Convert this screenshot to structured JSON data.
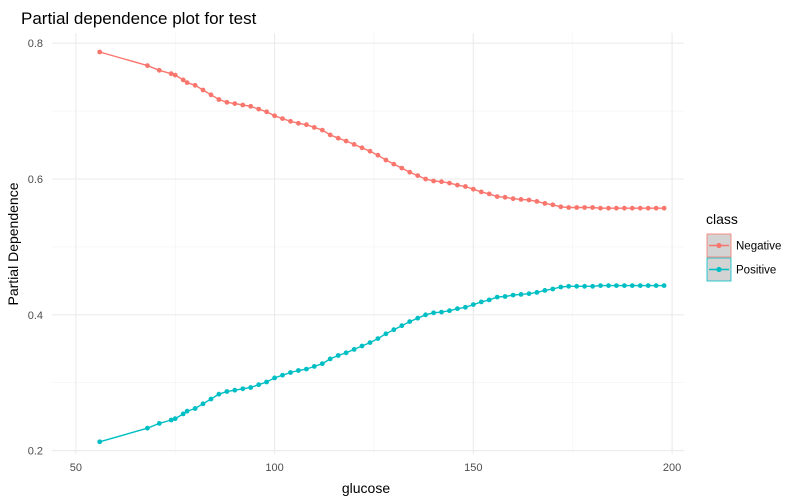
{
  "chart_data": {
    "type": "line",
    "title": "Partial dependence plot for test",
    "xlabel": "glucose",
    "ylabel": "Partial Dependence",
    "xlim": [
      44,
      203
    ],
    "ylim": [
      0.195,
      0.815
    ],
    "x_ticks": [
      50,
      100,
      150,
      200
    ],
    "y_ticks": [
      0.2,
      0.4,
      0.6,
      0.8
    ],
    "grid": true,
    "legend": {
      "title": "class",
      "position": "right"
    },
    "series": [
      {
        "name": "Negative",
        "color": "#F8766D",
        "points": [
          [
            56,
            0.787
          ],
          [
            68,
            0.767
          ],
          [
            71,
            0.76
          ],
          [
            74,
            0.755
          ],
          [
            75,
            0.753
          ],
          [
            77,
            0.746
          ],
          [
            78,
            0.742
          ],
          [
            80,
            0.738
          ],
          [
            82,
            0.731
          ],
          [
            84,
            0.724
          ],
          [
            86,
            0.717
          ],
          [
            88,
            0.713
          ],
          [
            90,
            0.711
          ],
          [
            92,
            0.709
          ],
          [
            94,
            0.707
          ],
          [
            96,
            0.703
          ],
          [
            98,
            0.699
          ],
          [
            100,
            0.693
          ],
          [
            102,
            0.689
          ],
          [
            104,
            0.685
          ],
          [
            106,
            0.682
          ],
          [
            108,
            0.68
          ],
          [
            110,
            0.676
          ],
          [
            112,
            0.672
          ],
          [
            114,
            0.665
          ],
          [
            116,
            0.66
          ],
          [
            118,
            0.656
          ],
          [
            120,
            0.651
          ],
          [
            122,
            0.646
          ],
          [
            124,
            0.641
          ],
          [
            126,
            0.635
          ],
          [
            128,
            0.628
          ],
          [
            130,
            0.622
          ],
          [
            132,
            0.616
          ],
          [
            134,
            0.61
          ],
          [
            136,
            0.605
          ],
          [
            138,
            0.6
          ],
          [
            140,
            0.597
          ],
          [
            142,
            0.596
          ],
          [
            144,
            0.594
          ],
          [
            146,
            0.591
          ],
          [
            148,
            0.589
          ],
          [
            150,
            0.585
          ],
          [
            152,
            0.581
          ],
          [
            154,
            0.578
          ],
          [
            156,
            0.574
          ],
          [
            158,
            0.573
          ],
          [
            160,
            0.571
          ],
          [
            162,
            0.57
          ],
          [
            164,
            0.569
          ],
          [
            166,
            0.567
          ],
          [
            168,
            0.564
          ],
          [
            170,
            0.562
          ],
          [
            172,
            0.559
          ],
          [
            174,
            0.558
          ],
          [
            176,
            0.558
          ],
          [
            178,
            0.558
          ],
          [
            180,
            0.558
          ],
          [
            182,
            0.557
          ],
          [
            184,
            0.557
          ],
          [
            186,
            0.557
          ],
          [
            188,
            0.557
          ],
          [
            190,
            0.557
          ],
          [
            192,
            0.557
          ],
          [
            194,
            0.557
          ],
          [
            196,
            0.557
          ],
          [
            198,
            0.557
          ]
        ]
      },
      {
        "name": "Positive",
        "color": "#00BFC4",
        "points": [
          [
            56,
            0.213
          ],
          [
            68,
            0.233
          ],
          [
            71,
            0.24
          ],
          [
            74,
            0.245
          ],
          [
            75,
            0.247
          ],
          [
            77,
            0.254
          ],
          [
            78,
            0.258
          ],
          [
            80,
            0.262
          ],
          [
            82,
            0.269
          ],
          [
            84,
            0.276
          ],
          [
            86,
            0.283
          ],
          [
            88,
            0.287
          ],
          [
            90,
            0.289
          ],
          [
            92,
            0.291
          ],
          [
            94,
            0.293
          ],
          [
            96,
            0.297
          ],
          [
            98,
            0.301
          ],
          [
            100,
            0.307
          ],
          [
            102,
            0.311
          ],
          [
            104,
            0.315
          ],
          [
            106,
            0.318
          ],
          [
            108,
            0.32
          ],
          [
            110,
            0.324
          ],
          [
            112,
            0.328
          ],
          [
            114,
            0.335
          ],
          [
            116,
            0.34
          ],
          [
            118,
            0.344
          ],
          [
            120,
            0.349
          ],
          [
            122,
            0.354
          ],
          [
            124,
            0.359
          ],
          [
            126,
            0.365
          ],
          [
            128,
            0.372
          ],
          [
            130,
            0.378
          ],
          [
            132,
            0.384
          ],
          [
            134,
            0.39
          ],
          [
            136,
            0.395
          ],
          [
            138,
            0.4
          ],
          [
            140,
            0.403
          ],
          [
            142,
            0.404
          ],
          [
            144,
            0.406
          ],
          [
            146,
            0.409
          ],
          [
            148,
            0.411
          ],
          [
            150,
            0.415
          ],
          [
            152,
            0.419
          ],
          [
            154,
            0.422
          ],
          [
            156,
            0.426
          ],
          [
            158,
            0.427
          ],
          [
            160,
            0.429
          ],
          [
            162,
            0.43
          ],
          [
            164,
            0.431
          ],
          [
            166,
            0.433
          ],
          [
            168,
            0.436
          ],
          [
            170,
            0.438
          ],
          [
            172,
            0.441
          ],
          [
            174,
            0.442
          ],
          [
            176,
            0.442
          ],
          [
            178,
            0.442
          ],
          [
            180,
            0.442
          ],
          [
            182,
            0.443
          ],
          [
            184,
            0.443
          ],
          [
            186,
            0.443
          ],
          [
            188,
            0.443
          ],
          [
            190,
            0.443
          ],
          [
            192,
            0.443
          ],
          [
            194,
            0.443
          ],
          [
            196,
            0.443
          ],
          [
            198,
            0.443
          ]
        ]
      }
    ]
  }
}
